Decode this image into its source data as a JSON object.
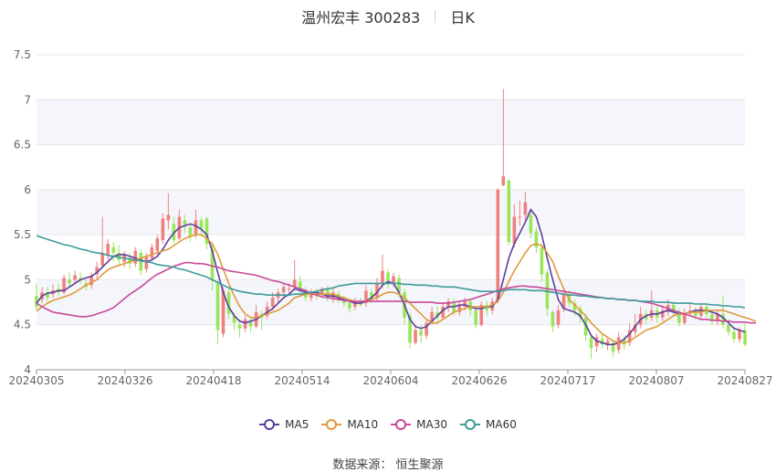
{
  "header": {
    "stock": "温州宏丰 300283",
    "period": "日K"
  },
  "source": "数据来源：  恒生聚源",
  "chart_data": {
    "type": "candlestick",
    "ylim": [
      4,
      7.5
    ],
    "yticks": [
      "7.5",
      "7",
      "6.5",
      "6",
      "5.5",
      "5",
      "4.5",
      "4"
    ],
    "xticks": [
      "20240305",
      "20240326",
      "20240418",
      "20240514",
      "20240604",
      "20240626",
      "20240717",
      "20240807",
      "20240827"
    ],
    "grid": true,
    "legend_position": "bottom",
    "colors": {
      "up": "#f08080",
      "down": "#98e65a"
    },
    "series": [
      {
        "name": "MA5",
        "color": "#5b3f9e"
      },
      {
        "name": "MA10",
        "color": "#e09a3d"
      },
      {
        "name": "MA30",
        "color": "#c94a9a"
      },
      {
        "name": "MA60",
        "color": "#3f9a9a"
      }
    ],
    "candles": [
      [
        4.82,
        4.7,
        4.96,
        4.66
      ],
      [
        4.78,
        4.86,
        4.92,
        4.74
      ],
      [
        4.86,
        4.8,
        4.92,
        4.76
      ],
      [
        4.84,
        4.88,
        4.95,
        4.8
      ],
      [
        4.9,
        4.86,
        4.96,
        4.82
      ],
      [
        4.86,
        5.02,
        5.06,
        4.84
      ],
      [
        5.0,
        4.96,
        5.08,
        4.92
      ],
      [
        5.0,
        5.05,
        5.1,
        4.96
      ],
      [
        5.02,
        5.0,
        5.08,
        4.95
      ],
      [
        4.96,
        4.92,
        5.0,
        4.88
      ],
      [
        4.94,
        5.04,
        5.08,
        4.9
      ],
      [
        5.06,
        5.14,
        5.2,
        5.0
      ],
      [
        5.16,
        5.3,
        5.7,
        5.12
      ],
      [
        5.28,
        5.4,
        5.45,
        5.22
      ],
      [
        5.36,
        5.3,
        5.42,
        5.2
      ],
      [
        5.3,
        5.22,
        5.38,
        5.16
      ],
      [
        5.2,
        5.28,
        5.32,
        5.14
      ],
      [
        5.24,
        5.18,
        5.3,
        5.12
      ],
      [
        5.18,
        5.32,
        5.36,
        5.14
      ],
      [
        5.3,
        5.1,
        5.34,
        5.05
      ],
      [
        5.12,
        5.26,
        5.3,
        5.08
      ],
      [
        5.24,
        5.36,
        5.4,
        5.2
      ],
      [
        5.32,
        5.46,
        5.5,
        5.28
      ],
      [
        5.44,
        5.68,
        5.74,
        5.4
      ],
      [
        5.66,
        5.72,
        5.96,
        5.56
      ],
      [
        5.62,
        5.44,
        5.7,
        5.4
      ],
      [
        5.46,
        5.7,
        5.78,
        5.44
      ],
      [
        5.66,
        5.6,
        5.72,
        5.52
      ],
      [
        5.58,
        5.48,
        5.62,
        5.42
      ],
      [
        5.5,
        5.66,
        5.78,
        5.46
      ],
      [
        5.66,
        5.56,
        5.7,
        5.48
      ],
      [
        5.68,
        5.4,
        5.7,
        5.34
      ],
      [
        5.34,
        5.0,
        5.4,
        4.88
      ],
      [
        4.96,
        4.44,
        5.0,
        4.28
      ],
      [
        4.4,
        4.88,
        4.92,
        4.36
      ],
      [
        4.86,
        4.62,
        4.9,
        4.56
      ],
      [
        4.6,
        4.52,
        4.64,
        4.44
      ],
      [
        4.5,
        4.46,
        4.56,
        4.36
      ],
      [
        4.46,
        4.56,
        4.6,
        4.42
      ],
      [
        4.54,
        4.48,
        4.58,
        4.42
      ],
      [
        4.48,
        4.64,
        4.72,
        4.46
      ],
      [
        4.62,
        4.58,
        4.66,
        4.44
      ],
      [
        4.6,
        4.7,
        4.76,
        4.56
      ],
      [
        4.7,
        4.8,
        4.86,
        4.66
      ],
      [
        4.8,
        4.86,
        4.9,
        4.74
      ],
      [
        4.86,
        4.92,
        4.96,
        4.8
      ],
      [
        4.9,
        4.9,
        4.96,
        4.84
      ],
      [
        4.92,
        5.0,
        5.22,
        4.88
      ],
      [
        4.98,
        4.88,
        5.04,
        4.84
      ],
      [
        4.88,
        4.8,
        4.92,
        4.76
      ],
      [
        4.8,
        4.86,
        4.9,
        4.76
      ],
      [
        4.86,
        4.82,
        4.9,
        4.78
      ],
      [
        4.84,
        4.9,
        4.92,
        4.8
      ],
      [
        4.9,
        4.8,
        4.94,
        4.76
      ],
      [
        4.8,
        4.86,
        4.9,
        4.74
      ],
      [
        4.84,
        4.78,
        4.88,
        4.74
      ],
      [
        4.78,
        4.74,
        4.82,
        4.7
      ],
      [
        4.74,
        4.68,
        4.78,
        4.64
      ],
      [
        4.7,
        4.76,
        4.8,
        4.66
      ],
      [
        4.74,
        4.72,
        4.8,
        4.7
      ],
      [
        4.74,
        4.88,
        4.94,
        4.7
      ],
      [
        4.86,
        4.78,
        4.9,
        4.74
      ],
      [
        4.8,
        4.96,
        5.02,
        4.76
      ],
      [
        4.96,
        5.1,
        5.28,
        4.9
      ],
      [
        5.08,
        4.96,
        5.12,
        4.9
      ],
      [
        4.96,
        5.04,
        5.08,
        4.92
      ],
      [
        5.02,
        4.86,
        5.06,
        4.8
      ],
      [
        4.86,
        4.58,
        4.9,
        4.5
      ],
      [
        4.6,
        4.3,
        4.64,
        4.24
      ],
      [
        4.3,
        4.44,
        4.5,
        4.28
      ],
      [
        4.44,
        4.38,
        4.5,
        4.3
      ],
      [
        4.38,
        4.52,
        4.56,
        4.34
      ],
      [
        4.54,
        4.64,
        4.7,
        4.5
      ],
      [
        4.64,
        4.58,
        4.7,
        4.52
      ],
      [
        4.58,
        4.7,
        4.74,
        4.56
      ],
      [
        4.7,
        4.76,
        4.8,
        4.64
      ],
      [
        4.74,
        4.64,
        4.8,
        4.6
      ],
      [
        4.64,
        4.72,
        4.76,
        4.6
      ],
      [
        4.7,
        4.76,
        4.8,
        4.66
      ],
      [
        4.76,
        4.66,
        4.8,
        4.6
      ],
      [
        4.66,
        4.5,
        4.7,
        4.46
      ],
      [
        4.5,
        4.72,
        4.76,
        4.48
      ],
      [
        4.72,
        4.66,
        4.76,
        4.6
      ],
      [
        4.66,
        4.76,
        4.8,
        4.62
      ],
      [
        4.78,
        6.0,
        6.02,
        4.74
      ],
      [
        6.05,
        6.15,
        7.12,
        6.04
      ],
      [
        6.1,
        5.42,
        6.12,
        5.38
      ],
      [
        5.4,
        5.7,
        5.84,
        5.36
      ],
      [
        5.7,
        5.7,
        5.88,
        5.6
      ],
      [
        5.72,
        5.86,
        5.98,
        5.66
      ],
      [
        5.72,
        5.52,
        5.76,
        5.46
      ],
      [
        5.54,
        5.36,
        5.58,
        5.3
      ],
      [
        5.36,
        5.06,
        5.4,
        4.98
      ],
      [
        5.08,
        4.68,
        5.12,
        4.6
      ],
      [
        4.64,
        4.48,
        4.66,
        4.42
      ],
      [
        4.5,
        4.66,
        4.72,
        4.46
      ],
      [
        4.68,
        4.84,
        4.9,
        4.64
      ],
      [
        4.84,
        4.74,
        4.88,
        4.7
      ],
      [
        4.74,
        4.66,
        4.78,
        4.6
      ],
      [
        4.68,
        4.58,
        4.72,
        4.52
      ],
      [
        4.58,
        4.38,
        4.62,
        4.32
      ],
      [
        4.36,
        4.24,
        4.4,
        4.12
      ],
      [
        4.26,
        4.36,
        4.4,
        4.2
      ],
      [
        4.34,
        4.28,
        4.4,
        4.24
      ],
      [
        4.28,
        4.32,
        4.36,
        4.22
      ],
      [
        4.3,
        4.2,
        4.34,
        4.14
      ],
      [
        4.22,
        4.36,
        4.42,
        4.18
      ],
      [
        4.34,
        4.28,
        4.38,
        4.22
      ],
      [
        4.3,
        4.44,
        4.52,
        4.26
      ],
      [
        4.42,
        4.5,
        4.62,
        4.38
      ],
      [
        4.5,
        4.62,
        4.7,
        4.46
      ],
      [
        4.62,
        4.56,
        4.66,
        4.5
      ],
      [
        4.58,
        4.66,
        4.88,
        4.54
      ],
      [
        4.66,
        4.58,
        4.72,
        4.52
      ],
      [
        4.58,
        4.66,
        4.72,
        4.54
      ],
      [
        4.64,
        4.72,
        4.78,
        4.6
      ],
      [
        4.72,
        4.64,
        4.76,
        4.6
      ],
      [
        4.64,
        4.52,
        4.68,
        4.48
      ],
      [
        4.52,
        4.62,
        4.68,
        4.5
      ],
      [
        4.62,
        4.66,
        4.74,
        4.6
      ],
      [
        4.66,
        4.6,
        4.7,
        4.56
      ],
      [
        4.6,
        4.7,
        4.74,
        4.56
      ],
      [
        4.7,
        4.62,
        4.74,
        4.58
      ],
      [
        4.62,
        4.54,
        4.66,
        4.5
      ],
      [
        4.54,
        4.62,
        4.66,
        4.5
      ],
      [
        4.62,
        4.5,
        4.82,
        4.46
      ],
      [
        4.5,
        4.42,
        4.56,
        4.38
      ],
      [
        4.42,
        4.34,
        4.48,
        4.3
      ],
      [
        4.34,
        4.44,
        4.48,
        4.3
      ],
      [
        4.44,
        4.28,
        4.52,
        4.26
      ]
    ],
    "ma5": [
      4.74,
      4.82,
      4.85,
      4.86,
      4.88,
      4.88,
      4.92,
      4.96,
      5.0,
      5.02,
      5.04,
      5.08,
      5.14,
      5.2,
      5.26,
      5.28,
      5.28,
      5.26,
      5.24,
      5.22,
      5.2,
      5.22,
      5.26,
      5.34,
      5.44,
      5.52,
      5.58,
      5.6,
      5.62,
      5.6,
      5.56,
      5.5,
      5.32,
      5.08,
      4.86,
      4.7,
      4.6,
      4.54,
      4.52,
      4.54,
      4.56,
      4.6,
      4.64,
      4.68,
      4.74,
      4.8,
      4.84,
      4.9,
      4.88,
      4.86,
      4.86,
      4.86,
      4.84,
      4.82,
      4.82,
      4.8,
      4.78,
      4.76,
      4.74,
      4.74,
      4.76,
      4.8,
      4.86,
      4.94,
      4.98,
      4.96,
      4.86,
      4.72,
      4.56,
      4.48,
      4.46,
      4.48,
      4.54,
      4.6,
      4.66,
      4.7,
      4.7,
      4.72,
      4.72,
      4.7,
      4.68,
      4.68,
      4.7,
      4.7,
      4.78,
      5.0,
      5.24,
      5.4,
      5.52,
      5.64,
      5.78,
      5.7,
      5.5,
      5.24,
      5.0,
      4.78,
      4.68,
      4.66,
      4.64,
      4.6,
      4.5,
      4.38,
      4.32,
      4.3,
      4.28,
      4.28,
      4.3,
      4.34,
      4.4,
      4.48,
      4.56,
      4.6,
      4.62,
      4.62,
      4.64,
      4.66,
      4.64,
      4.62,
      4.62,
      4.64,
      4.66,
      4.66,
      4.66,
      4.64,
      4.62,
      4.58,
      4.52,
      4.46,
      4.44,
      4.42
    ],
    "ma10": [
      4.65,
      4.7,
      4.74,
      4.77,
      4.79,
      4.81,
      4.83,
      4.86,
      4.9,
      4.94,
      4.97,
      5.0,
      5.06,
      5.11,
      5.14,
      5.16,
      5.18,
      5.2,
      5.22,
      5.24,
      5.26,
      5.28,
      5.3,
      5.32,
      5.34,
      5.38,
      5.42,
      5.46,
      5.48,
      5.5,
      5.5,
      5.46,
      5.4,
      5.28,
      5.12,
      4.96,
      4.82,
      4.7,
      4.62,
      4.58,
      4.58,
      4.6,
      4.62,
      4.64,
      4.66,
      4.7,
      4.74,
      4.8,
      4.82,
      4.84,
      4.84,
      4.84,
      4.84,
      4.84,
      4.84,
      4.82,
      4.8,
      4.78,
      4.76,
      4.76,
      4.76,
      4.78,
      4.8,
      4.84,
      4.86,
      4.86,
      4.84,
      4.8,
      4.74,
      4.68,
      4.62,
      4.56,
      4.52,
      4.52,
      4.56,
      4.6,
      4.64,
      4.66,
      4.68,
      4.7,
      4.7,
      4.7,
      4.7,
      4.72,
      4.76,
      4.86,
      4.98,
      5.1,
      5.2,
      5.3,
      5.38,
      5.4,
      5.38,
      5.3,
      5.2,
      5.04,
      4.9,
      4.78,
      4.72,
      4.66,
      4.6,
      4.52,
      4.46,
      4.4,
      4.36,
      4.32,
      4.3,
      4.3,
      4.32,
      4.36,
      4.4,
      4.44,
      4.46,
      4.48,
      4.52,
      4.56,
      4.6,
      4.62,
      4.62,
      4.64,
      4.64,
      4.64,
      4.66,
      4.66,
      4.66,
      4.66,
      4.64,
      4.62,
      4.6,
      4.58,
      4.56,
      4.54
    ],
    "ma30": [
      4.74,
      4.7,
      4.67,
      4.64,
      4.63,
      4.62,
      4.61,
      4.6,
      4.59,
      4.59,
      4.6,
      4.62,
      4.64,
      4.66,
      4.69,
      4.74,
      4.79,
      4.84,
      4.88,
      4.92,
      4.97,
      5.02,
      5.06,
      5.09,
      5.12,
      5.15,
      5.17,
      5.19,
      5.19,
      5.18,
      5.18,
      5.17,
      5.15,
      5.14,
      5.12,
      5.1,
      5.09,
      5.08,
      5.07,
      5.06,
      5.05,
      5.03,
      5.01,
      4.99,
      4.98,
      4.96,
      4.94,
      4.92,
      4.9,
      4.88,
      4.85,
      4.83,
      4.81,
      4.8,
      4.79,
      4.78,
      4.77,
      4.76,
      4.76,
      4.76,
      4.76,
      4.76,
      4.76,
      4.76,
      4.76,
      4.76,
      4.76,
      4.76,
      4.75,
      4.75,
      4.75,
      4.75,
      4.75,
      4.74,
      4.74,
      4.74,
      4.75,
      4.76,
      4.77,
      4.78,
      4.8,
      4.82,
      4.84,
      4.86,
      4.88,
      4.9,
      4.91,
      4.92,
      4.93,
      4.93,
      4.92,
      4.92,
      4.91,
      4.9,
      4.89,
      4.88,
      4.87,
      4.86,
      4.85,
      4.84,
      4.83,
      4.82,
      4.81,
      4.8,
      4.79,
      4.79,
      4.78,
      4.78,
      4.77,
      4.77,
      4.76,
      4.75,
      4.74,
      4.72,
      4.7,
      4.68,
      4.66,
      4.64,
      4.62,
      4.6,
      4.58,
      4.56,
      4.56,
      4.55,
      4.55,
      4.54,
      4.54,
      4.53,
      4.53,
      4.53,
      4.52,
      4.52
    ],
    "ma60": [
      5.49,
      5.47,
      5.45,
      5.43,
      5.41,
      5.39,
      5.38,
      5.36,
      5.34,
      5.33,
      5.31,
      5.3,
      5.29,
      5.27,
      5.26,
      5.25,
      5.24,
      5.23,
      5.22,
      5.21,
      5.2,
      5.19,
      5.17,
      5.16,
      5.15,
      5.14,
      5.12,
      5.11,
      5.09,
      5.07,
      5.05,
      5.03,
      5.0,
      4.97,
      4.94,
      4.91,
      4.89,
      4.87,
      4.86,
      4.85,
      4.84,
      4.84,
      4.83,
      4.83,
      4.83,
      4.83,
      4.83,
      4.84,
      4.84,
      4.85,
      4.86,
      4.87,
      4.89,
      4.9,
      4.91,
      4.93,
      4.94,
      4.95,
      4.96,
      4.96,
      4.96,
      4.96,
      4.96,
      4.96,
      4.96,
      4.96,
      4.96,
      4.95,
      4.95,
      4.94,
      4.94,
      4.94,
      4.93,
      4.93,
      4.92,
      4.92,
      4.92,
      4.91,
      4.9,
      4.89,
      4.88,
      4.87,
      4.87,
      4.87,
      4.87,
      4.88,
      4.89,
      4.89,
      4.89,
      4.89,
      4.88,
      4.88,
      4.88,
      4.87,
      4.86,
      4.85,
      4.84,
      4.83,
      4.83,
      4.82,
      4.82,
      4.81,
      4.8,
      4.8,
      4.79,
      4.79,
      4.78,
      4.78,
      4.77,
      4.77,
      4.76,
      4.76,
      4.76,
      4.75,
      4.75,
      4.75,
      4.74,
      4.74,
      4.74,
      4.74,
      4.73,
      4.73,
      4.73,
      4.72,
      4.72,
      4.71,
      4.71,
      4.7,
      4.7,
      4.69
    ]
  }
}
